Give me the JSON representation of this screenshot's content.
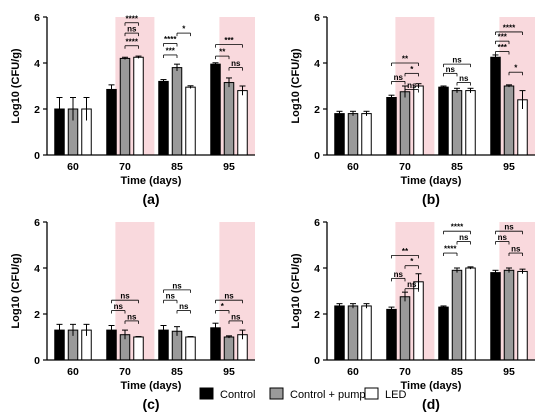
{
  "colors": {
    "shade": "#f9d9dd",
    "control": "#000000",
    "pump": "#9a9a9a",
    "led": "#ffffff",
    "stroke": "#000000"
  },
  "legend": [
    {
      "key": "control",
      "label": "Control"
    },
    {
      "key": "pump",
      "label": "Control + pump"
    },
    {
      "key": "led",
      "label": "LED"
    }
  ],
  "chart_data": [
    {
      "type": "bar",
      "panel_label": "(a)",
      "xlabel": "Time (days)",
      "ylabel": "Log10 (CFU/g)",
      "ylim": [
        0,
        6
      ],
      "yticks": [
        0,
        2,
        4,
        6
      ],
      "categories": [
        "60",
        "70",
        "85",
        "95"
      ],
      "shaded_days": [
        "70",
        "95"
      ],
      "series": [
        {
          "name": "Control",
          "values": [
            2.0,
            2.85,
            3.2,
            3.95
          ],
          "errors": [
            0.5,
            0.2,
            0.08,
            0.06
          ]
        },
        {
          "name": "Control + pump",
          "values": [
            2.0,
            4.2,
            3.8,
            3.15
          ],
          "errors": [
            0.5,
            0.05,
            0.15,
            0.2
          ]
        },
        {
          "name": "LED",
          "values": [
            2.0,
            4.25,
            2.95,
            2.8
          ],
          "errors": [
            0.5,
            0.05,
            0.06,
            0.2
          ]
        }
      ],
      "significance": [
        {
          "day": 0,
          "from": 1,
          "to": 2,
          "label": "****",
          "y": 5.75
        },
        {
          "day": 0,
          "from": 1,
          "to": 2,
          "label": "ns",
          "y": 5.3
        },
        {
          "day": 0,
          "from": 1,
          "to": 1,
          "label": "****",
          "y": 4.75
        },
        {
          "day": 1,
          "from": 1,
          "to": 2,
          "label": "*",
          "y": 5.3
        },
        {
          "day": 1,
          "from": 0,
          "to": 1,
          "label": "****",
          "y": 4.85
        },
        {
          "day": 1,
          "from": 0,
          "to": 0,
          "label": "***",
          "y": 4.35
        },
        {
          "day": 2,
          "from": 0,
          "to": 2,
          "label": "***",
          "y": 4.8
        },
        {
          "day": 2,
          "from": 0,
          "to": 1,
          "label": "**",
          "y": 4.3
        },
        {
          "day": 2,
          "from": 1,
          "to": 2,
          "label": "ns",
          "y": 3.8
        }
      ]
    },
    {
      "type": "bar",
      "panel_label": "(b)",
      "xlabel": "Time (days)",
      "ylabel": "Log10 (CFU/g)",
      "ylim": [
        0,
        6
      ],
      "yticks": [
        0,
        2,
        4,
        6
      ],
      "categories": [
        "60",
        "70",
        "85",
        "95"
      ],
      "shaded_days": [
        "70",
        "95"
      ],
      "series": [
        {
          "name": "Control",
          "values": [
            1.8,
            2.5,
            2.95,
            4.25
          ],
          "errors": [
            0.1,
            0.1,
            0.05,
            0.1
          ]
        },
        {
          "name": "Control + pump",
          "values": [
            1.8,
            2.75,
            2.8,
            3.0
          ],
          "errors": [
            0.1,
            0.25,
            0.1,
            0.05
          ]
        },
        {
          "name": "LED",
          "values": [
            1.8,
            3.0,
            2.8,
            2.4
          ],
          "errors": [
            0.1,
            0.1,
            0.1,
            0.4
          ]
        }
      ],
      "significance": [
        {
          "day": 0,
          "from": 0,
          "to": 2,
          "label": "**",
          "y": 4.0
        },
        {
          "day": 0,
          "from": 1,
          "to": 2,
          "label": "*",
          "y": 3.55
        },
        {
          "day": 0,
          "from": 0,
          "to": 1,
          "label": "ns",
          "y": 3.2
        },
        {
          "day": 0,
          "from": 1,
          "to": 1,
          "label": "ns",
          "y": 2.85
        },
        {
          "day": 1,
          "from": 0,
          "to": 2,
          "label": "ns",
          "y": 3.95
        },
        {
          "day": 1,
          "from": 0,
          "to": 1,
          "label": "ns",
          "y": 3.55
        },
        {
          "day": 1,
          "from": 1,
          "to": 2,
          "label": "ns",
          "y": 3.15
        },
        {
          "day": 2,
          "from": 0,
          "to": 2,
          "label": "****",
          "y": 5.35
        },
        {
          "day": 2,
          "from": 0,
          "to": 1,
          "label": "***",
          "y": 4.95
        },
        {
          "day": 2,
          "from": 0,
          "to": 0,
          "label": "***",
          "y": 4.5
        },
        {
          "day": 2,
          "from": 1,
          "to": 2,
          "label": "*",
          "y": 3.6
        }
      ]
    },
    {
      "type": "bar",
      "panel_label": "(c)",
      "xlabel": "Time (days)",
      "ylabel": "Log10 (CFU/g)",
      "ylim": [
        0,
        6
      ],
      "yticks": [
        0,
        2,
        4,
        6
      ],
      "categories": [
        "60",
        "70",
        "85",
        "95"
      ],
      "shaded_days": [
        "70",
        "95"
      ],
      "series": [
        {
          "name": "Control",
          "values": [
            1.3,
            1.3,
            1.3,
            1.4
          ],
          "errors": [
            0.25,
            0.2,
            0.2,
            0.2
          ]
        },
        {
          "name": "Control + pump",
          "values": [
            1.3,
            1.1,
            1.25,
            1.0
          ],
          "errors": [
            0.25,
            0.2,
            0.2,
            0.05
          ]
        },
        {
          "name": "LED",
          "values": [
            1.3,
            1.0,
            1.0,
            1.1
          ],
          "errors": [
            0.25,
            0.02,
            0.02,
            0.2
          ]
        }
      ],
      "significance": [
        {
          "day": 0,
          "from": 0,
          "to": 2,
          "label": "ns",
          "y": 2.6
        },
        {
          "day": 0,
          "from": 0,
          "to": 1,
          "label": "ns",
          "y": 2.15
        },
        {
          "day": 0,
          "from": 1,
          "to": 2,
          "label": "ns",
          "y": 1.7
        },
        {
          "day": 1,
          "from": 0,
          "to": 2,
          "label": "ns",
          "y": 3.05
        },
        {
          "day": 1,
          "from": 0,
          "to": 1,
          "label": "ns",
          "y": 2.6
        },
        {
          "day": 1,
          "from": 1,
          "to": 2,
          "label": "ns",
          "y": 2.15
        },
        {
          "day": 2,
          "from": 0,
          "to": 2,
          "label": "ns",
          "y": 2.6
        },
        {
          "day": 2,
          "from": 0,
          "to": 1,
          "label": "*",
          "y": 2.15
        },
        {
          "day": 2,
          "from": 1,
          "to": 2,
          "label": "ns",
          "y": 1.7
        }
      ]
    },
    {
      "type": "bar",
      "panel_label": "(d)",
      "xlabel": "Time (days)",
      "ylabel": "Log10 (CFU/g)",
      "ylim": [
        0,
        6
      ],
      "yticks": [
        0,
        2,
        4,
        6
      ],
      "categories": [
        "60",
        "70",
        "85",
        "95"
      ],
      "shaded_days": [
        "70",
        "95"
      ],
      "series": [
        {
          "name": "Control",
          "values": [
            2.35,
            2.2,
            2.3,
            3.8
          ],
          "errors": [
            0.1,
            0.1,
            0.05,
            0.1
          ]
        },
        {
          "name": "Control + pump",
          "values": [
            2.35,
            2.75,
            3.9,
            3.9
          ],
          "errors": [
            0.1,
            0.2,
            0.1,
            0.1
          ]
        },
        {
          "name": "LED",
          "values": [
            2.35,
            3.4,
            4.0,
            3.85
          ],
          "errors": [
            0.1,
            0.35,
            0.05,
            0.1
          ]
        }
      ],
      "significance": [
        {
          "day": 0,
          "from": 0,
          "to": 2,
          "label": "**",
          "y": 4.55
        },
        {
          "day": 0,
          "from": 1,
          "to": 2,
          "label": "*",
          "y": 4.1
        },
        {
          "day": 0,
          "from": 0,
          "to": 1,
          "label": "ns",
          "y": 3.55
        },
        {
          "day": 0,
          "from": 1,
          "to": 1,
          "label": "ns",
          "y": 3.1
        },
        {
          "day": 1,
          "from": 0,
          "to": 2,
          "label": "****",
          "y": 5.6
        },
        {
          "day": 1,
          "from": 1,
          "to": 2,
          "label": "ns",
          "y": 5.15
        },
        {
          "day": 1,
          "from": 0,
          "to": 1,
          "label": "****",
          "y": 4.65
        },
        {
          "day": 2,
          "from": 0,
          "to": 2,
          "label": "ns",
          "y": 5.6
        },
        {
          "day": 2,
          "from": 0,
          "to": 1,
          "label": "ns",
          "y": 5.15
        },
        {
          "day": 2,
          "from": 1,
          "to": 2,
          "label": "ns",
          "y": 4.65
        }
      ]
    }
  ]
}
